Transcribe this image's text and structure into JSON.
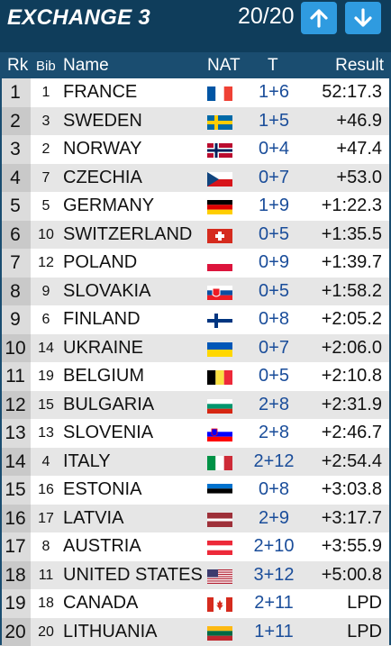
{
  "header": {
    "title": "EXCHANGE 3",
    "counter": "20/20"
  },
  "columns": {
    "rk": "Rk",
    "bib": "Bib",
    "name": "Name",
    "nat": "NAT",
    "t": "T",
    "result": "Result"
  },
  "rows": [
    {
      "rk": "1",
      "bib": "1",
      "name": "FRANCE",
      "t": "1+6",
      "result": "52:17.3",
      "flag": "france"
    },
    {
      "rk": "2",
      "bib": "3",
      "name": "SWEDEN",
      "t": "1+5",
      "result": "+46.9",
      "flag": "sweden"
    },
    {
      "rk": "3",
      "bib": "2",
      "name": "NORWAY",
      "t": "0+4",
      "result": "+47.4",
      "flag": "norway"
    },
    {
      "rk": "4",
      "bib": "7",
      "name": "CZECHIA",
      "t": "0+7",
      "result": "+53.0",
      "flag": "czechia"
    },
    {
      "rk": "5",
      "bib": "5",
      "name": "GERMANY",
      "t": "1+9",
      "result": "+1:22.3",
      "flag": "germany"
    },
    {
      "rk": "6",
      "bib": "10",
      "name": "SWITZERLAND",
      "t": "0+5",
      "result": "+1:35.5",
      "flag": "switzerland"
    },
    {
      "rk": "7",
      "bib": "12",
      "name": "POLAND",
      "t": "0+9",
      "result": "+1:39.7",
      "flag": "poland"
    },
    {
      "rk": "8",
      "bib": "9",
      "name": "SLOVAKIA",
      "t": "0+5",
      "result": "+1:58.2",
      "flag": "slovakia"
    },
    {
      "rk": "9",
      "bib": "6",
      "name": "FINLAND",
      "t": "0+8",
      "result": "+2:05.2",
      "flag": "finland"
    },
    {
      "rk": "10",
      "bib": "14",
      "name": "UKRAINE",
      "t": "0+7",
      "result": "+2:06.0",
      "flag": "ukraine"
    },
    {
      "rk": "11",
      "bib": "19",
      "name": "BELGIUM",
      "t": "0+5",
      "result": "+2:10.8",
      "flag": "belgium"
    },
    {
      "rk": "12",
      "bib": "15",
      "name": "BULGARIA",
      "t": "2+8",
      "result": "+2:31.9",
      "flag": "bulgaria"
    },
    {
      "rk": "13",
      "bib": "13",
      "name": "SLOVENIA",
      "t": "2+8",
      "result": "+2:46.7",
      "flag": "slovenia"
    },
    {
      "rk": "14",
      "bib": "4",
      "name": "ITALY",
      "t": "2+12",
      "result": "+2:54.4",
      "flag": "italy"
    },
    {
      "rk": "15",
      "bib": "16",
      "name": "ESTONIA",
      "t": "0+8",
      "result": "+3:03.8",
      "flag": "estonia"
    },
    {
      "rk": "16",
      "bib": "17",
      "name": "LATVIA",
      "t": "2+9",
      "result": "+3:17.7",
      "flag": "latvia"
    },
    {
      "rk": "17",
      "bib": "8",
      "name": "AUSTRIA",
      "t": "2+10",
      "result": "+3:55.9",
      "flag": "austria"
    },
    {
      "rk": "18",
      "bib": "11",
      "name": "UNITED STATES",
      "t": "3+12",
      "result": "+5:00.8",
      "flag": "usa"
    },
    {
      "rk": "19",
      "bib": "18",
      "name": "CANADA",
      "t": "2+11",
      "result": "LPD",
      "flag": "canada"
    },
    {
      "rk": "20",
      "bib": "20",
      "name": "LITHUANIA",
      "t": "1+11",
      "result": "LPD",
      "flag": "lithuania"
    }
  ]
}
